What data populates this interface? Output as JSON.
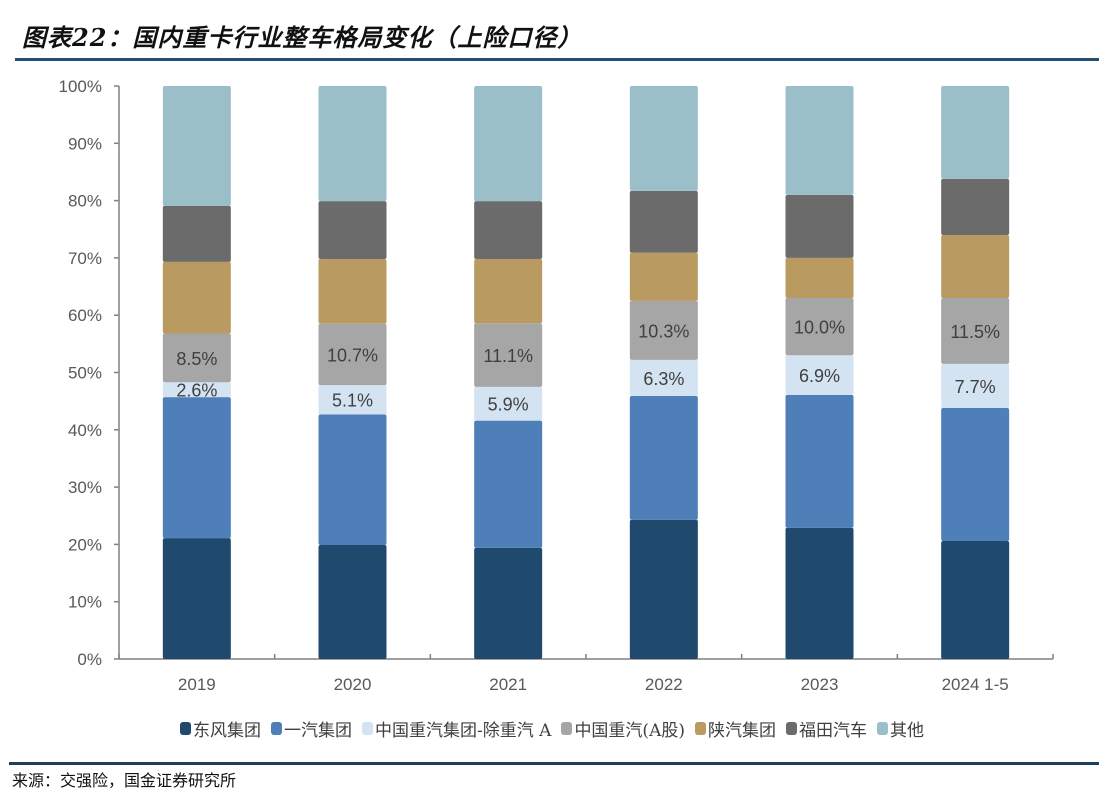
{
  "header": {
    "title": "图表22：国内重卡行业整车格局变化（上险口径）"
  },
  "footer": {
    "source": "来源：交强险，国金证券研究所"
  },
  "chart_data": {
    "type": "bar",
    "stacked": true,
    "percent_stacked": true,
    "title": "国内重卡行业整车格局变化（上险口径）",
    "xlabel": "",
    "ylabel": "",
    "ylim": [
      0,
      100
    ],
    "yticks": [
      "0%",
      "10%",
      "20%",
      "30%",
      "40%",
      "50%",
      "60%",
      "70%",
      "80%",
      "90%",
      "100%"
    ],
    "grid": false,
    "legend_position": "bottom",
    "categories": [
      "2019",
      "2020",
      "2021",
      "2022",
      "2023",
      "2024 1-5"
    ],
    "series": [
      {
        "name": "东风集团",
        "color": "#1f4a6e",
        "values": [
          21.1,
          19.9,
          19.4,
          24.3,
          22.9,
          20.6
        ],
        "show_labels": false
      },
      {
        "name": "一汽集团",
        "color": "#4f7fb8",
        "values": [
          24.6,
          22.8,
          22.2,
          21.6,
          23.2,
          23.2
        ],
        "show_labels": false
      },
      {
        "name": "中国重汽集团-除重汽 A",
        "color": "#d4e3f2",
        "values": [
          2.6,
          5.1,
          5.9,
          6.3,
          6.9,
          7.7
        ],
        "show_labels": true
      },
      {
        "name": "中国重汽(A股)",
        "color": "#a6a6a6",
        "values": [
          8.5,
          10.7,
          11.1,
          10.3,
          10.0,
          11.5
        ],
        "show_labels": true
      },
      {
        "name": "陕汽集团",
        "color": "#b99b62",
        "values": [
          12.5,
          11.3,
          11.2,
          8.4,
          7.0,
          11.0
        ],
        "show_labels": false
      },
      {
        "name": "福田汽车",
        "color": "#6b6b6b",
        "values": [
          9.8,
          10.1,
          10.1,
          10.8,
          11.0,
          9.8
        ],
        "show_labels": false
      },
      {
        "name": "其他",
        "color": "#9abfc8",
        "values": [
          20.9,
          20.1,
          20.1,
          18.3,
          19.0,
          16.2
        ],
        "show_labels": false
      }
    ],
    "data_labels": {
      "中国重汽集团-除重汽 A": [
        "2.6%",
        "5.1%",
        "5.9%",
        "6.3%",
        "6.9%",
        "7.7%"
      ],
      "中国重汽(A股)": [
        "8.5%",
        "10.7%",
        "11.1%",
        "10.3%",
        "10.0%",
        "11.5%"
      ]
    }
  }
}
